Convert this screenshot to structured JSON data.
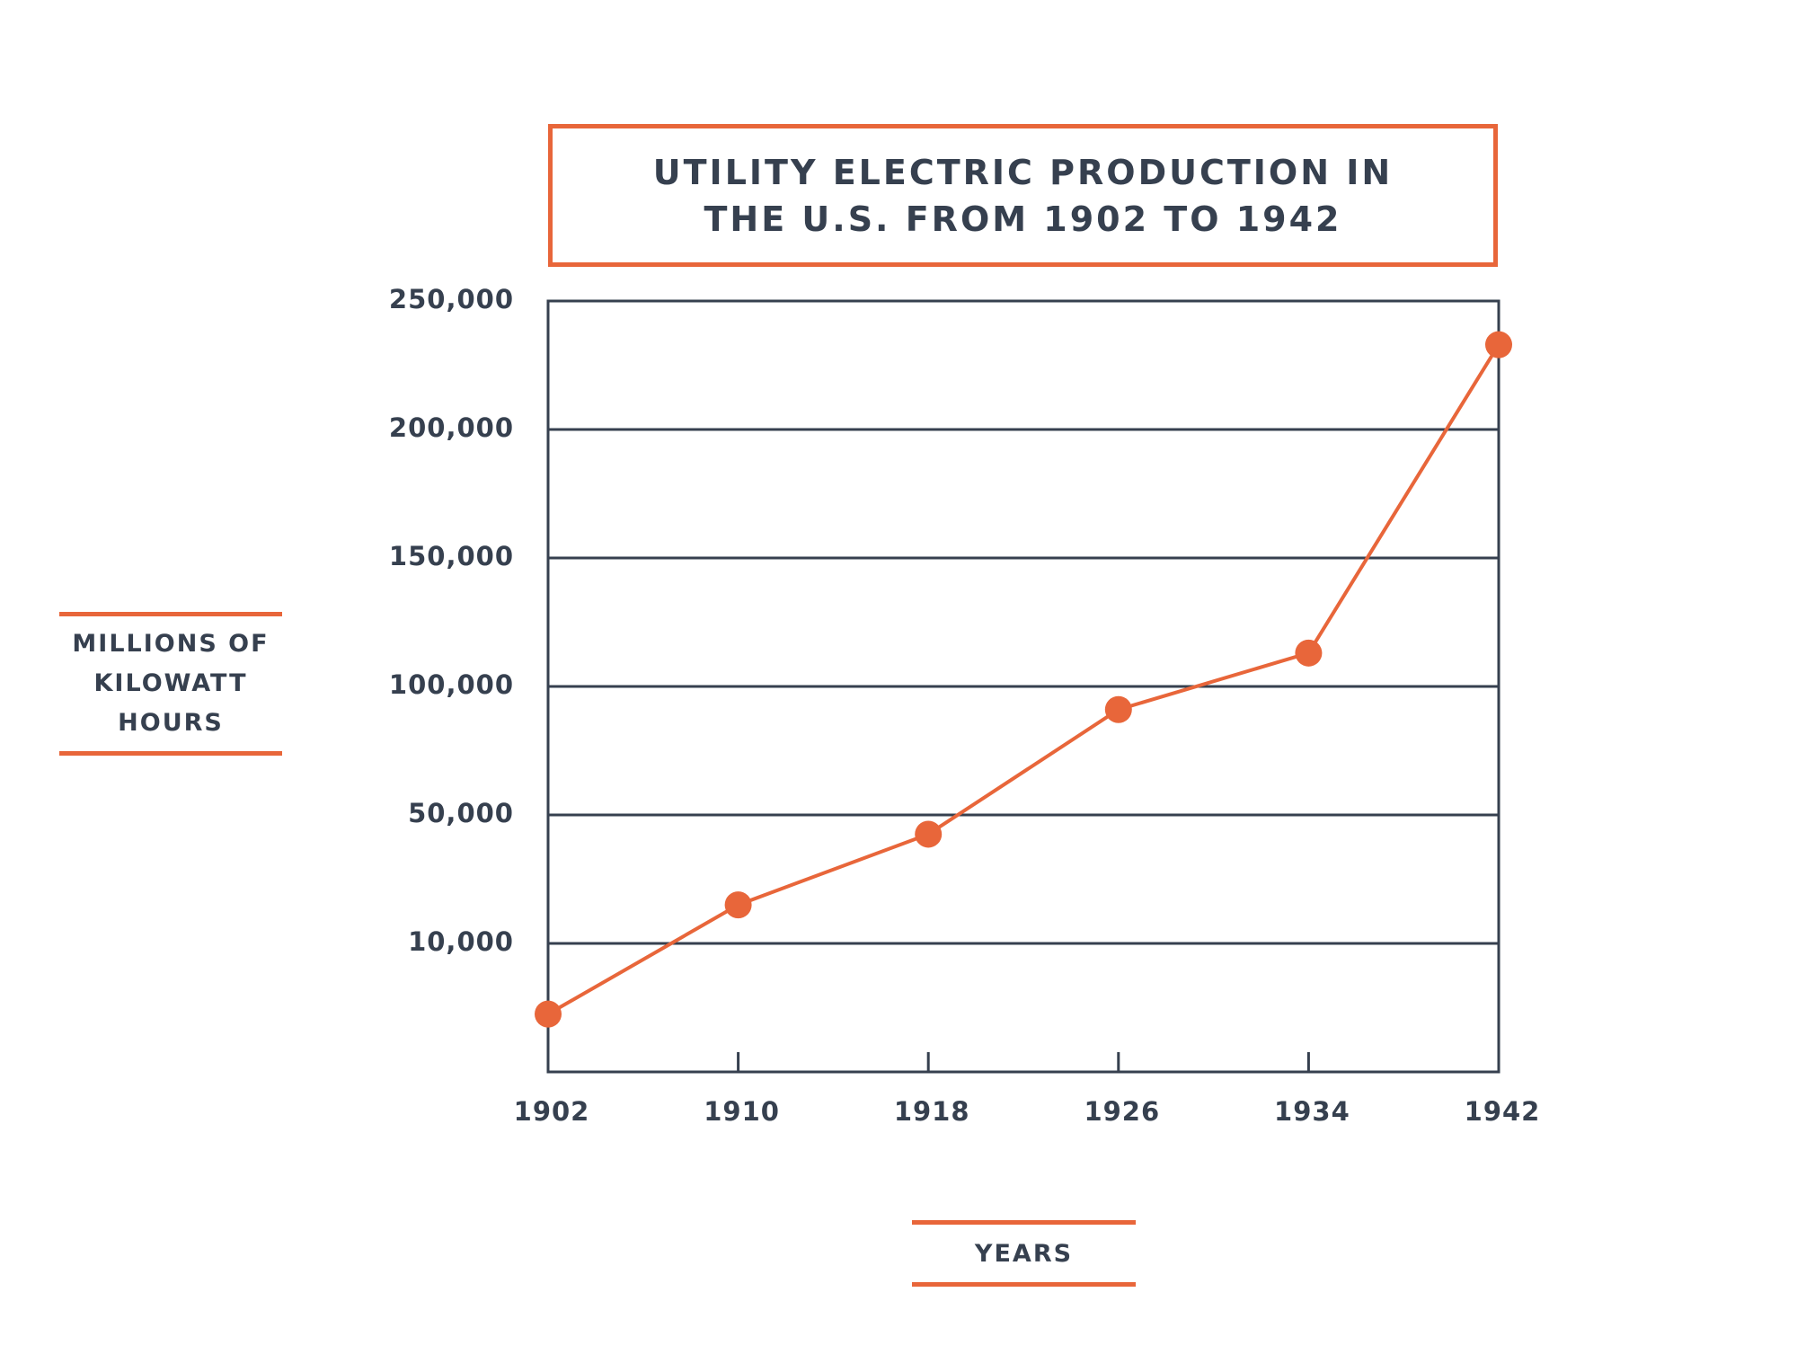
{
  "chart_data": {
    "type": "line",
    "title": "UTILITY ELECTRIC PRODUCTION IN THE U.S. FROM 1902 TO 1942",
    "x_label": "YEARS",
    "y_label": "MILLIONS OF KILOWATT HOURS",
    "x": [
      1902,
      1910,
      1918,
      1926,
      1934,
      1942
    ],
    "series": [
      {
        "color": "#e8663a",
        "values": [
          4500,
          22000,
          44000,
          91000,
          113000,
          233000
        ]
      }
    ],
    "xlim": [
      1902,
      1942
    ],
    "xticks": [
      1902,
      1910,
      1918,
      1926,
      1934,
      1942
    ],
    "ylim": [
      0,
      250000
    ],
    "yticks": [
      {
        "value": 10000,
        "label": "10,000"
      },
      {
        "value": 50000,
        "label": "50,000"
      },
      {
        "value": 100000,
        "label": "100,000"
      },
      {
        "value": 150000,
        "label": "150,000"
      },
      {
        "value": 200000,
        "label": "200,000"
      },
      {
        "value": 250000,
        "label": "250,000"
      }
    ],
    "grid": true
  }
}
